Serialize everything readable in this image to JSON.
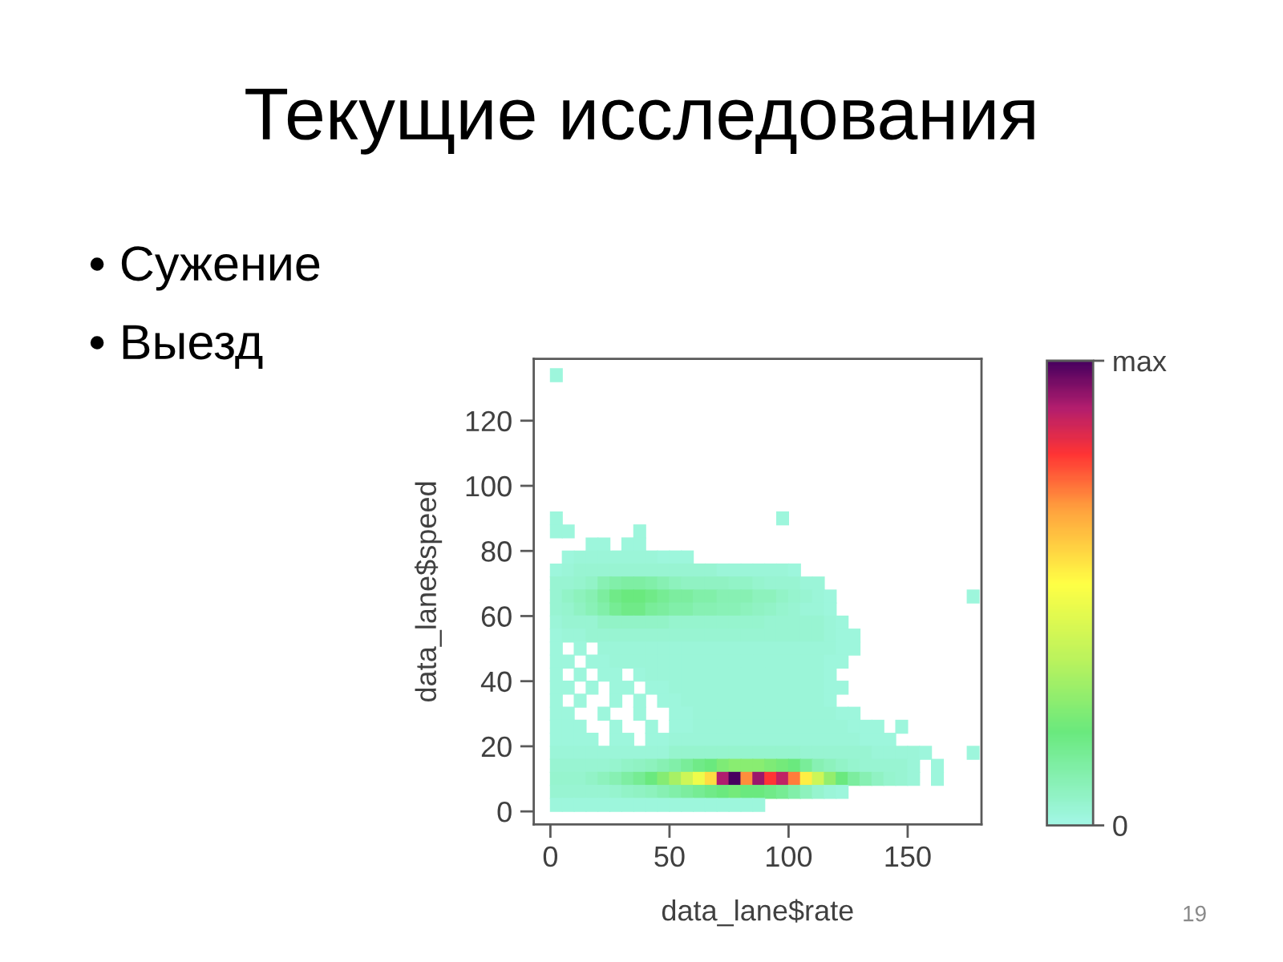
{
  "chart_data": {
    "type": "scatter",
    "title": "Текущие исследования",
    "annotations": [
      "• Сужение",
      "• Выезд",
      "19"
    ],
    "xlabel": "data_lane$rate",
    "ylabel": "data_lane$speed",
    "xlim": [
      -7,
      181
    ],
    "ylim": [
      -4,
      139
    ],
    "xticks": [
      0,
      50,
      100,
      150
    ],
    "yticks": [
      0,
      20,
      40,
      60,
      80,
      100,
      120
    ],
    "marker": "square",
    "clim": [
      0,
      1
    ],
    "cticks": [
      {
        "value": 0,
        "label": "0"
      },
      {
        "value": 1,
        "label": "max"
      }
    ],
    "x": [
      2.5,
      2.5,
      97.5,
      2.5,
      7.5,
      37.5,
      17.5,
      22.5,
      32.5,
      37.5,
      7.5,
      12.5,
      17.5,
      22.5,
      27.5,
      32.5,
      37.5,
      42.5,
      47.5,
      52.5,
      57.5,
      2.5,
      7.5,
      12.5,
      17.5,
      22.5,
      27.5,
      32.5,
      37.5,
      42.5,
      47.5,
      52.5,
      57.5,
      62.5,
      67.5,
      72.5,
      77.5,
      82.5,
      87.5,
      92.5,
      97.5,
      102.5,
      2.5,
      7.5,
      12.5,
      17.5,
      22.5,
      27.5,
      32.5,
      37.5,
      42.5,
      47.5,
      52.5,
      57.5,
      62.5,
      67.5,
      72.5,
      77.5,
      82.5,
      87.5,
      92.5,
      97.5,
      102.5,
      107.5,
      112.5,
      2.5,
      7.5,
      12.5,
      17.5,
      22.5,
      27.5,
      32.5,
      37.5,
      42.5,
      47.5,
      52.5,
      57.5,
      62.5,
      67.5,
      72.5,
      77.5,
      82.5,
      87.5,
      92.5,
      97.5,
      102.5,
      107.5,
      112.5,
      117.5,
      177.5,
      2.5,
      7.5,
      12.5,
      17.5,
      22.5,
      27.5,
      32.5,
      37.5,
      42.5,
      47.5,
      52.5,
      57.5,
      62.5,
      67.5,
      72.5,
      77.5,
      82.5,
      87.5,
      92.5,
      97.5,
      102.5,
      107.5,
      112.5,
      117.5,
      2.5,
      7.5,
      12.5,
      17.5,
      22.5,
      27.5,
      32.5,
      37.5,
      42.5,
      47.5,
      52.5,
      57.5,
      62.5,
      67.5,
      72.5,
      77.5,
      82.5,
      87.5,
      92.5,
      97.5,
      102.5,
      107.5,
      112.5,
      117.5,
      122.5,
      2.5,
      7.5,
      12.5,
      17.5,
      22.5,
      27.5,
      32.5,
      37.5,
      42.5,
      47.5,
      52.5,
      57.5,
      62.5,
      67.5,
      72.5,
      77.5,
      82.5,
      87.5,
      92.5,
      97.5,
      102.5,
      107.5,
      112.5,
      117.5,
      122.5,
      127.5,
      2.5,
      12.5,
      22.5,
      27.5,
      32.5,
      37.5,
      42.5,
      47.5,
      52.5,
      57.5,
      62.5,
      67.5,
      72.5,
      77.5,
      82.5,
      87.5,
      92.5,
      97.5,
      102.5,
      107.5,
      112.5,
      117.5,
      122.5,
      127.5,
      2.5,
      7.5,
      17.5,
      22.5,
      27.5,
      32.5,
      37.5,
      42.5,
      47.5,
      52.5,
      57.5,
      62.5,
      67.5,
      72.5,
      77.5,
      82.5,
      87.5,
      92.5,
      97.5,
      102.5,
      107.5,
      112.5,
      117.5,
      122.5,
      2.5,
      12.5,
      22.5,
      27.5,
      37.5,
      42.5,
      47.5,
      52.5,
      57.5,
      62.5,
      67.5,
      72.5,
      77.5,
      82.5,
      87.5,
      92.5,
      97.5,
      102.5,
      107.5,
      112.5,
      117.5,
      2.5,
      7.5,
      17.5,
      27.5,
      32.5,
      42.5,
      47.5,
      52.5,
      57.5,
      62.5,
      67.5,
      72.5,
      77.5,
      82.5,
      87.5,
      92.5,
      97.5,
      102.5,
      107.5,
      112.5,
      117.5,
      122.5,
      2.5,
      12.5,
      27.5,
      37.5,
      47.5,
      52.5,
      57.5,
      62.5,
      67.5,
      72.5,
      77.5,
      82.5,
      87.5,
      92.5,
      97.5,
      102.5,
      107.5,
      112.5,
      117.5,
      2.5,
      7.5,
      22.5,
      37.5,
      52.5,
      57.5,
      62.5,
      67.5,
      72.5,
      77.5,
      82.5,
      87.5,
      92.5,
      97.5,
      102.5,
      107.5,
      112.5,
      117.5,
      122.5,
      127.5,
      2.5,
      7.5,
      12.5,
      27.5,
      42.5,
      52.5,
      57.5,
      62.5,
      67.5,
      72.5,
      77.5,
      82.5,
      87.5,
      92.5,
      97.5,
      102.5,
      107.5,
      112.5,
      117.5,
      122.5,
      127.5,
      132.5,
      137.5,
      147.5,
      2.5,
      7.5,
      12.5,
      17.5,
      27.5,
      32.5,
      42.5,
      47.5,
      52.5,
      57.5,
      62.5,
      67.5,
      72.5,
      77.5,
      82.5,
      87.5,
      92.5,
      97.5,
      102.5,
      107.5,
      112.5,
      117.5,
      122.5,
      127.5,
      132.5,
      137.5,
      142.5,
      2.5,
      7.5,
      12.5,
      17.5,
      22.5,
      27.5,
      32.5,
      37.5,
      42.5,
      47.5,
      52.5,
      57.5,
      62.5,
      67.5,
      72.5,
      77.5,
      82.5,
      87.5,
      92.5,
      97.5,
      102.5,
      107.5,
      112.5,
      117.5,
      122.5,
      127.5,
      132.5,
      137.5,
      142.5,
      147.5,
      152.5,
      157.5,
      177.5,
      2.5,
      7.5,
      12.5,
      17.5,
      22.5,
      27.5,
      32.5,
      37.5,
      42.5,
      47.5,
      52.5,
      57.5,
      62.5,
      67.5,
      72.5,
      77.5,
      82.5,
      87.5,
      92.5,
      97.5,
      102.5,
      107.5,
      112.5,
      117.5,
      122.5,
      127.5,
      132.5,
      137.5,
      142.5,
      147.5,
      152.5,
      162.5,
      2.5,
      7.5,
      12.5,
      17.5,
      22.5,
      27.5,
      32.5,
      37.5,
      42.5,
      47.5,
      52.5,
      57.5,
      62.5,
      67.5,
      72.5,
      77.5,
      82.5,
      87.5,
      92.5,
      97.5,
      102.5,
      107.5,
      112.5,
      117.5,
      122.5,
      127.5,
      132.5,
      137.5,
      142.5,
      147.5,
      152.5,
      162.5,
      2.5,
      7.5,
      12.5,
      17.5,
      22.5,
      27.5,
      32.5,
      37.5,
      42.5,
      47.5,
      52.5,
      57.5,
      62.5,
      67.5,
      72.5,
      77.5,
      82.5,
      87.5,
      92.5,
      97.5,
      102.5,
      107.5,
      112.5,
      117.5,
      122.5,
      2.5,
      7.5,
      12.5,
      17.5,
      22.5,
      27.5,
      32.5,
      37.5,
      42.5,
      47.5,
      52.5,
      57.5,
      62.5,
      67.5,
      72.5,
      77.5,
      82.5,
      87.5
    ],
    "values": [
      134,
      90,
      90,
      86,
      86,
      86,
      82,
      82,
      82,
      82,
      78,
      78,
      78,
      78,
      78,
      78,
      78,
      78,
      78,
      78,
      78,
      74,
      74,
      74,
      74,
      74,
      74,
      74,
      74,
      74,
      74,
      74,
      74,
      74,
      74,
      74,
      74,
      74,
      74,
      74,
      74,
      74,
      70,
      70,
      70,
      70,
      70,
      70,
      70,
      70,
      70,
      70,
      70,
      70,
      70,
      70,
      70,
      70,
      70,
      70,
      70,
      70,
      70,
      70,
      70,
      66,
      66,
      66,
      66,
      66,
      66,
      66,
      66,
      66,
      66,
      66,
      66,
      66,
      66,
      66,
      66,
      66,
      66,
      66,
      66,
      66,
      66,
      66,
      66,
      66,
      62,
      62,
      62,
      62,
      62,
      62,
      62,
      62,
      62,
      62,
      62,
      62,
      62,
      62,
      62,
      62,
      62,
      62,
      62,
      62,
      62,
      62,
      62,
      62,
      58,
      58,
      58,
      58,
      58,
      58,
      58,
      58,
      58,
      58,
      58,
      58,
      58,
      58,
      58,
      58,
      58,
      58,
      58,
      58,
      58,
      58,
      58,
      58,
      58,
      54,
      54,
      54,
      54,
      54,
      54,
      54,
      54,
      54,
      54,
      54,
      54,
      54,
      54,
      54,
      54,
      54,
      54,
      54,
      54,
      54,
      54,
      54,
      54,
      54,
      54,
      50,
      50,
      50,
      50,
      50,
      50,
      50,
      50,
      50,
      50,
      50,
      50,
      50,
      50,
      50,
      50,
      50,
      50,
      50,
      50,
      50,
      50,
      50,
      50,
      46,
      46,
      46,
      46,
      46,
      46,
      46,
      46,
      46,
      46,
      46,
      46,
      46,
      46,
      46,
      46,
      46,
      46,
      46,
      46,
      46,
      46,
      46,
      46,
      42,
      42,
      42,
      42,
      42,
      42,
      42,
      42,
      42,
      42,
      42,
      42,
      42,
      42,
      42,
      42,
      42,
      42,
      42,
      42,
      42,
      38,
      38,
      38,
      38,
      38,
      38,
      38,
      38,
      38,
      38,
      38,
      38,
      38,
      38,
      38,
      38,
      38,
      38,
      38,
      38,
      38,
      38,
      34,
      34,
      34,
      34,
      34,
      34,
      34,
      34,
      34,
      34,
      34,
      34,
      34,
      34,
      34,
      34,
      34,
      34,
      34,
      30,
      30,
      30,
      30,
      30,
      30,
      30,
      30,
      30,
      30,
      30,
      30,
      30,
      30,
      30,
      30,
      30,
      30,
      30,
      30,
      26,
      26,
      26,
      26,
      26,
      26,
      26,
      26,
      26,
      26,
      26,
      26,
      26,
      26,
      26,
      26,
      26,
      26,
      26,
      26,
      26,
      26,
      26,
      26,
      22,
      22,
      22,
      22,
      22,
      22,
      22,
      22,
      22,
      22,
      22,
      22,
      22,
      22,
      22,
      22,
      22,
      22,
      22,
      22,
      22,
      22,
      22,
      22,
      22,
      22,
      22,
      18,
      18,
      18,
      18,
      18,
      18,
      18,
      18,
      18,
      18,
      18,
      18,
      18,
      18,
      18,
      18,
      18,
      18,
      18,
      18,
      18,
      18,
      18,
      18,
      18,
      18,
      18,
      18,
      18,
      18,
      18,
      18,
      18,
      14,
      14,
      14,
      14,
      14,
      14,
      14,
      14,
      14,
      14,
      14,
      14,
      14,
      14,
      14,
      14,
      14,
      14,
      14,
      14,
      14,
      14,
      14,
      14,
      14,
      14,
      14,
      14,
      14,
      14,
      14,
      14,
      10,
      10,
      10,
      10,
      10,
      10,
      10,
      10,
      10,
      10,
      10,
      10,
      10,
      10,
      10,
      10,
      10,
      10,
      10,
      10,
      10,
      10,
      10,
      10,
      10,
      10,
      10,
      10,
      10,
      10,
      10,
      10,
      6,
      6,
      6,
      6,
      6,
      6,
      6,
      6,
      6,
      6,
      6,
      6,
      6,
      6,
      6,
      6,
      6,
      6,
      6,
      6,
      6,
      6,
      6,
      6,
      6,
      2,
      2,
      2,
      2,
      2,
      2,
      2,
      2,
      2,
      2,
      2,
      2,
      2,
      2,
      2,
      2,
      2,
      2
    ],
    "cvalues": [
      0.02,
      0.02,
      0.02,
      0.02,
      0.02,
      0.02,
      0.02,
      0.02,
      0.02,
      0.02,
      0.02,
      0.03,
      0.03,
      0.03,
      0.03,
      0.03,
      0.03,
      0.03,
      0.02,
      0.02,
      0.02,
      0.02,
      0.03,
      0.04,
      0.04,
      0.04,
      0.04,
      0.04,
      0.04,
      0.04,
      0.04,
      0.04,
      0.04,
      0.04,
      0.04,
      0.03,
      0.03,
      0.03,
      0.03,
      0.03,
      0.03,
      0.02,
      0.04,
      0.04,
      0.05,
      0.06,
      0.1,
      0.12,
      0.13,
      0.13,
      0.12,
      0.1,
      0.08,
      0.07,
      0.07,
      0.07,
      0.07,
      0.06,
      0.06,
      0.05,
      0.04,
      0.04,
      0.04,
      0.03,
      0.03,
      0.04,
      0.06,
      0.08,
      0.1,
      0.14,
      0.18,
      0.2,
      0.2,
      0.18,
      0.16,
      0.14,
      0.14,
      0.12,
      0.12,
      0.1,
      0.1,
      0.1,
      0.08,
      0.08,
      0.06,
      0.05,
      0.04,
      0.03,
      0.02,
      0.02,
      0.04,
      0.05,
      0.07,
      0.09,
      0.12,
      0.16,
      0.18,
      0.18,
      0.15,
      0.14,
      0.12,
      0.12,
      0.1,
      0.1,
      0.09,
      0.09,
      0.08,
      0.07,
      0.06,
      0.05,
      0.04,
      0.03,
      0.03,
      0.02,
      0.03,
      0.04,
      0.04,
      0.04,
      0.06,
      0.06,
      0.06,
      0.06,
      0.06,
      0.06,
      0.05,
      0.05,
      0.05,
      0.05,
      0.05,
      0.05,
      0.05,
      0.05,
      0.04,
      0.04,
      0.04,
      0.04,
      0.04,
      0.03,
      0.02,
      0.02,
      0.03,
      0.03,
      0.04,
      0.04,
      0.04,
      0.04,
      0.04,
      0.04,
      0.04,
      0.04,
      0.04,
      0.04,
      0.04,
      0.04,
      0.04,
      0.04,
      0.04,
      0.04,
      0.04,
      0.04,
      0.04,
      0.04,
      0.03,
      0.02,
      0.02,
      0.02,
      0.02,
      0.03,
      0.03,
      0.03,
      0.03,
      0.03,
      0.03,
      0.03,
      0.03,
      0.03,
      0.03,
      0.03,
      0.03,
      0.03,
      0.03,
      0.03,
      0.03,
      0.03,
      0.03,
      0.03,
      0.03,
      0.02,
      0.02,
      0.02,
      0.02,
      0.02,
      0.02,
      0.03,
      0.03,
      0.03,
      0.03,
      0.03,
      0.03,
      0.03,
      0.03,
      0.03,
      0.03,
      0.03,
      0.03,
      0.03,
      0.03,
      0.03,
      0.03,
      0.03,
      0.03,
      0.02,
      0.02,
      0.02,
      0.02,
      0.02,
      0.02,
      0.02,
      0.03,
      0.03,
      0.03,
      0.03,
      0.03,
      0.03,
      0.03,
      0.03,
      0.03,
      0.03,
      0.03,
      0.03,
      0.03,
      0.03,
      0.03,
      0.02,
      0.02,
      0.02,
      0.02,
      0.02,
      0.02,
      0.02,
      0.02,
      0.03,
      0.03,
      0.03,
      0.03,
      0.03,
      0.03,
      0.03,
      0.03,
      0.03,
      0.03,
      0.03,
      0.03,
      0.03,
      0.02,
      0.02,
      0.02,
      0.02,
      0.02,
      0.02,
      0.02,
      0.02,
      0.03,
      0.03,
      0.03,
      0.03,
      0.03,
      0.03,
      0.03,
      0.03,
      0.03,
      0.03,
      0.03,
      0.03,
      0.02,
      0.02,
      0.02,
      0.02,
      0.02,
      0.02,
      0.02,
      0.03,
      0.03,
      0.03,
      0.03,
      0.03,
      0.03,
      0.03,
      0.03,
      0.03,
      0.03,
      0.03,
      0.03,
      0.02,
      0.02,
      0.02,
      0.02,
      0.02,
      0.02,
      0.02,
      0.02,
      0.02,
      0.03,
      0.03,
      0.03,
      0.03,
      0.03,
      0.03,
      0.03,
      0.03,
      0.03,
      0.03,
      0.03,
      0.03,
      0.03,
      0.02,
      0.02,
      0.02,
      0.02,
      0.02,
      0.02,
      0.02,
      0.02,
      0.02,
      0.02,
      0.02,
      0.02,
      0.03,
      0.03,
      0.03,
      0.03,
      0.03,
      0.03,
      0.03,
      0.03,
      0.03,
      0.03,
      0.03,
      0.03,
      0.03,
      0.03,
      0.03,
      0.03,
      0.02,
      0.02,
      0.02,
      0.03,
      0.03,
      0.03,
      0.03,
      0.03,
      0.03,
      0.03,
      0.03,
      0.03,
      0.03,
      0.05,
      0.05,
      0.05,
      0.05,
      0.05,
      0.05,
      0.05,
      0.05,
      0.05,
      0.05,
      0.05,
      0.04,
      0.04,
      0.04,
      0.04,
      0.04,
      0.04,
      0.03,
      0.03,
      0.03,
      0.03,
      0.02,
      0.02,
      0.04,
      0.04,
      0.04,
      0.04,
      0.04,
      0.05,
      0.06,
      0.07,
      0.08,
      0.1,
      0.12,
      0.15,
      0.18,
      0.2,
      0.24,
      0.26,
      0.26,
      0.26,
      0.24,
      0.22,
      0.2,
      0.15,
      0.1,
      0.08,
      0.06,
      0.05,
      0.04,
      0.04,
      0.04,
      0.04,
      0.03,
      0.02,
      0.05,
      0.05,
      0.05,
      0.06,
      0.08,
      0.1,
      0.13,
      0.16,
      0.2,
      0.25,
      0.32,
      0.4,
      0.48,
      0.58,
      0.9,
      1,
      0.7,
      0.92,
      0.8,
      0.88,
      0.72,
      0.55,
      0.4,
      0.28,
      0.2,
      0.14,
      0.1,
      0.07,
      0.05,
      0.04,
      0.03,
      0.02,
      0.04,
      0.04,
      0.04,
      0.04,
      0.04,
      0.05,
      0.06,
      0.07,
      0.08,
      0.1,
      0.12,
      0.14,
      0.16,
      0.18,
      0.2,
      0.22,
      0.2,
      0.2,
      0.18,
      0.16,
      0.12,
      0.08,
      0.05,
      0.03,
      0.02,
      0.02,
      0.02,
      0.02,
      0.02,
      0.02,
      0.02,
      0.02,
      0.02,
      0.02,
      0.02,
      0.02,
      0.02,
      0.02,
      0.02,
      0.02,
      0.02,
      0.02,
      0.02
    ]
  }
}
